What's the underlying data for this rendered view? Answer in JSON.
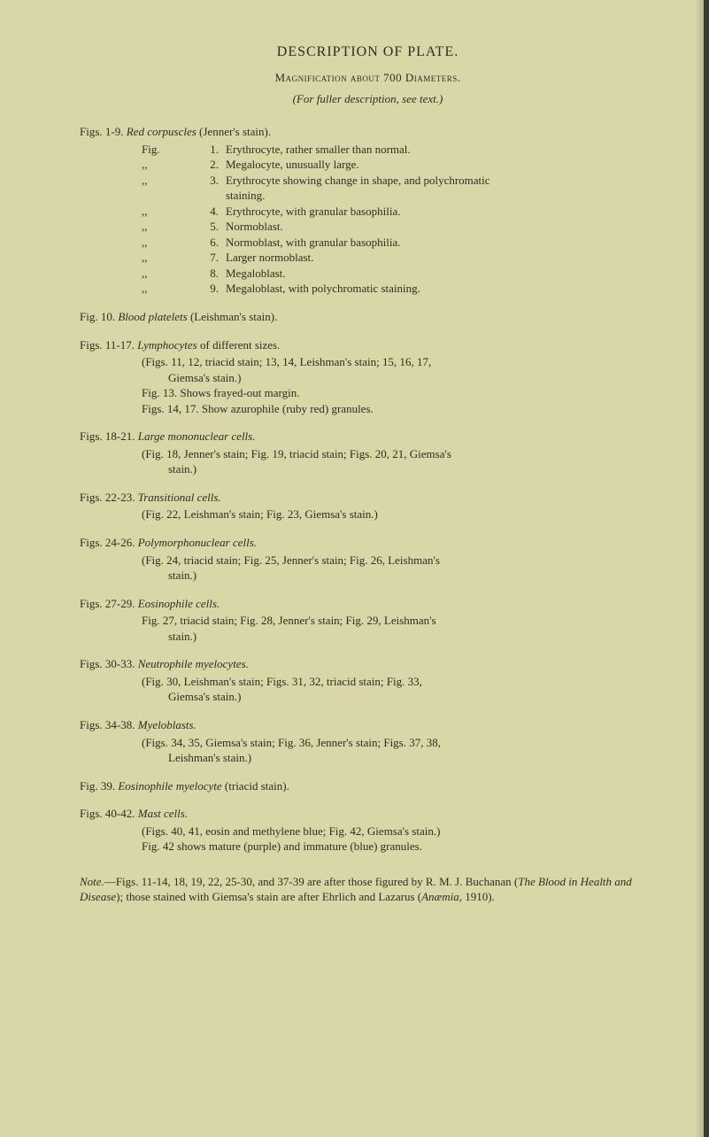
{
  "title": "DESCRIPTION OF PLATE.",
  "subtitle": "Magnification about 700 Diameters.",
  "subtitle2": "(For fuller description, see text.)",
  "s1": {
    "head_a": "Figs. 1-9.  ",
    "head_b": "Red corpuscles",
    "head_c": " (Jenner's stain).",
    "rows": [
      {
        "label": "Fig.",
        "num": "1.",
        "text": "Erythrocyte, rather smaller than normal."
      },
      {
        "label": ",,",
        "num": "2.",
        "text": "Megalocyte, unusually large."
      },
      {
        "label": ",,",
        "num": "3.",
        "text": "Erythrocyte showing change in shape, and polychromatic"
      },
      {
        "label": "",
        "num": "",
        "text": "  staining."
      },
      {
        "label": ",,",
        "num": "4.",
        "text": "Erythrocyte, with granular basophilia."
      },
      {
        "label": ",,",
        "num": "5.",
        "text": "Normoblast."
      },
      {
        "label": ",,",
        "num": "6.",
        "text": "Normoblast, with granular basophilia."
      },
      {
        "label": ",,",
        "num": "7.",
        "text": "Larger normoblast."
      },
      {
        "label": ",,",
        "num": "8.",
        "text": "Megaloblast."
      },
      {
        "label": ",,",
        "num": "9.",
        "text": "Megaloblast, with polychromatic staining."
      }
    ]
  },
  "s2": {
    "a": "Fig. 10.   ",
    "b": "Blood platelets",
    "c": " (Leishman's stain)."
  },
  "s3": {
    "a": "Figs. 11-17.   ",
    "b": "Lymphocytes",
    "c": " of different sizes.",
    "l1": "(Figs. 11, 12, triacid stain; 13, 14, Leishman's stain; 15, 16, 17,",
    "l1b": "Giemsa's stain.)",
    "l2": "Fig. 13.   Shows frayed-out margin.",
    "l3": "Figs. 14, 17.   Show azurophile (ruby red) granules."
  },
  "s4": {
    "a": "Figs. 18-21.   ",
    "b": "Large mononuclear cells.",
    "l1": "(Fig. 18, Jenner's stain; Fig. 19, triacid stain; Figs. 20, 21, Giemsa's",
    "l1b": "stain.)"
  },
  "s5": {
    "a": "Figs. 22-23.   ",
    "b": "Transitional cells.",
    "l1": "(Fig. 22, Leishman's stain; Fig. 23, Giemsa's stain.)"
  },
  "s6": {
    "a": "Figs. 24-26.   ",
    "b": "Polymorphonuclear cells.",
    "l1": "(Fig. 24, triacid stain; Fig. 25, Jenner's stain; Fig. 26, Leishman's",
    "l1b": "stain.)"
  },
  "s7": {
    "a": "Figs. 27-29.   ",
    "b": "Eosinophile cells.",
    "l1": "Fig. 27, triacid stain; Fig. 28, Jenner's stain; Fig. 29, Leishman's",
    "l1b": "stain.)"
  },
  "s8": {
    "a": "Figs. 30-33.   ",
    "b": "Neutrophile myelocytes.",
    "l1": "(Fig. 30, Leishman's stain; Figs. 31, 32, triacid stain; Fig. 33,",
    "l1b": "Giemsa's stain.)"
  },
  "s9": {
    "a": "Figs. 34-38.   ",
    "b": "Myeloblasts.",
    "l1": "(Figs. 34, 35, Giemsa's stain; Fig. 36, Jenner's stain; Figs. 37, 38,",
    "l1b": "Leishman's stain.)"
  },
  "s10": {
    "a": "Fig. 39.   ",
    "b": "Eosinophile myelocyte",
    "c": " (triacid stain)."
  },
  "s11": {
    "a": "Figs. 40-42.   ",
    "b": "Mast cells.",
    "l1": "(Figs. 40, 41, eosin and methylene blue; Fig. 42, Giemsa's stain.)",
    "l2": "Fig. 42 shows mature (purple) and immature (blue) granules."
  },
  "note": {
    "a": "Note.",
    "b": "—Figs. 11-14, 18, 19, 22, 25-30, and 37-39 are after those figured by R. M. J. Buchanan (",
    "c": "The Blood in Health and Disease",
    "d": "); those stained with Giemsa's stain are after Ehrlich and Lazarus (",
    "e": "Anæmia",
    "f": ", 1910)."
  }
}
